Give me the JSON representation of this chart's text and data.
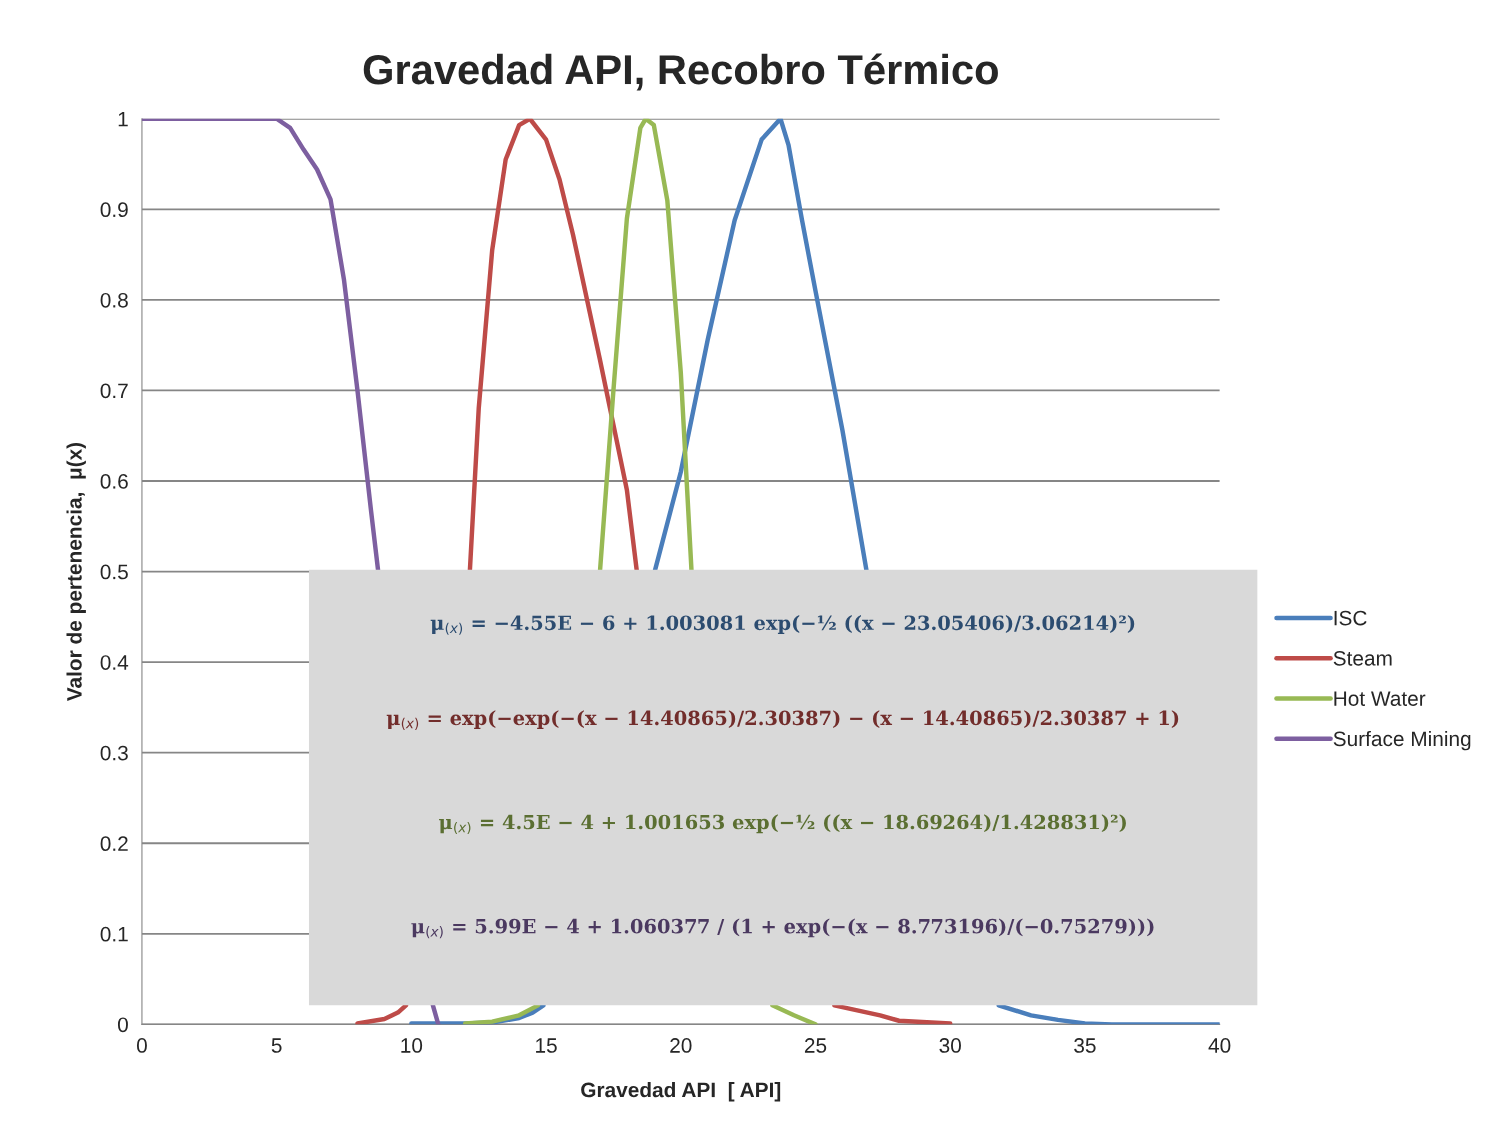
{
  "chart_data": {
    "type": "line",
    "title": "Gravedad API, Recobro Térmico",
    "xlabel": "Gravedad API  [ API]",
    "ylabel": "Valor de pertenencia,  μ(x)",
    "xlim": [
      0,
      40
    ],
    "xticks": [
      0,
      5,
      10,
      15,
      20,
      25,
      30,
      35,
      40
    ],
    "ylim": [
      0,
      1
    ],
    "yticks": [
      0,
      0.1,
      0.2,
      0.3,
      0.4,
      0.5,
      0.6,
      0.7,
      0.8,
      0.9,
      1
    ],
    "grid": "y",
    "legend": "right",
    "line_style": "solid",
    "marker": "none",
    "series": [
      {
        "name": "ISC",
        "color": "#4a7ebb",
        "x": [
          10,
          12,
          13,
          14,
          14.5,
          14.9,
          16,
          19.03,
          20,
          21,
          22,
          23,
          23.7,
          24,
          24.5,
          25,
          26,
          26.9,
          29,
          31.8,
          33,
          34,
          35,
          36,
          38,
          40
        ],
        "values": [
          0.001,
          0.001,
          0.002,
          0.007,
          0.013,
          0.021,
          null,
          0.5,
          0.61,
          0.756,
          0.888,
          0.977,
          1,
          0.971,
          0.888,
          0.81,
          0.656,
          0.5,
          null,
          0.021,
          0.01,
          0.005,
          0.001,
          0,
          0,
          0
        ]
      },
      {
        "name": "Steam",
        "color": "#be4b48",
        "x": [
          8,
          9,
          9.5,
          9.8,
          11,
          12.17,
          12.5,
          13,
          13.5,
          14,
          14.4,
          15,
          15.5,
          16,
          17,
          18,
          18.37,
          22,
          25.7,
          27.4,
          28.1,
          30
        ],
        "values": [
          0.001,
          0.006,
          0.013,
          0.021,
          null,
          0.5,
          0.68,
          0.855,
          0.955,
          0.993,
          1,
          0.977,
          0.933,
          0.872,
          0.734,
          0.59,
          0.5,
          null,
          0.021,
          0.01,
          0.004,
          0.001
        ]
      },
      {
        "name": "Hot Water",
        "color": "#98b954",
        "x": [
          12,
          13,
          14,
          14.7,
          16,
          17,
          17.5,
          18,
          18.5,
          18.7,
          19,
          19.5,
          20,
          20.4,
          22,
          23.4,
          24.2,
          25
        ],
        "values": [
          0.001,
          0.003,
          0.01,
          0.021,
          null,
          0.5,
          0.7,
          0.89,
          0.99,
          1,
          0.993,
          0.91,
          0.72,
          0.5,
          null,
          0.021,
          0.01,
          0
        ]
      },
      {
        "name": "Surface Mining",
        "color": "#7d5fa0",
        "x": [
          0,
          1,
          2,
          3,
          4,
          5,
          5.5,
          6,
          6.5,
          7,
          7.5,
          8,
          8.5,
          8.77,
          9.5,
          10.8,
          11
        ],
        "values": [
          1,
          1,
          1,
          1,
          1,
          1,
          0.99,
          0.966,
          0.944,
          0.911,
          0.822,
          0.7,
          0.568,
          0.5,
          null,
          0.021,
          0
        ]
      }
    ],
    "annotations": [
      "μ$_{(x)}$ = −4.55E − 6 + 1.003081 exp(−½ ((x − 23.05406)/3.06214)²)",
      "μ$_{(x)}$ = exp(−exp(−(x − 14.40865)/2.30387) − (x − 14.40865)/2.30387 + 1)",
      "μ$_{(x)}$ = 4.5E − 4 + 1.001653 exp(−½ ((x − 18.69264)/1.428831)²)",
      "μ$_{(x)}$ = 5.99E − 4 + 1.060377 / (1 + exp(−(x − 8.773196)/(−0.75279)))"
    ]
  }
}
